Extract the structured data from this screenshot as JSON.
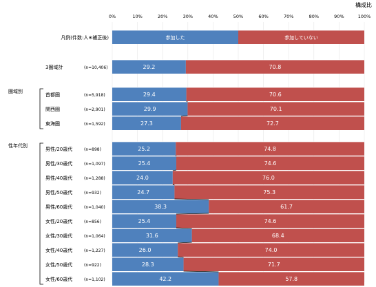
{
  "chart_data": {
    "type": "bar",
    "stacked": true,
    "orientation": "horizontal",
    "unit_label": "構成比",
    "xlim": [
      0,
      100
    ],
    "x_ticks": [
      "0%",
      "10%",
      "20%",
      "30%",
      "40%",
      "50%",
      "60%",
      "70%",
      "80%",
      "90%",
      "100%"
    ],
    "legend_row": {
      "label": "凡例(件数:人※補正後)",
      "series_labels": [
        "参加した",
        "参加していない"
      ],
      "values": [
        50,
        50
      ]
    },
    "series": [
      {
        "name": "参加した",
        "color": "#4f81bd"
      },
      {
        "name": "参加していない",
        "color": "#c0504d"
      }
    ],
    "groups": [
      {
        "label": "",
        "rows": [
          {
            "label": "3圏域計",
            "n": "(n=10,406)",
            "values": [
              29.2,
              70.8
            ]
          }
        ]
      },
      {
        "label": "圏域別",
        "rows": [
          {
            "label": "首都圏",
            "n": "(n=5,918)",
            "values": [
              29.4,
              70.6
            ]
          },
          {
            "label": "関西圏",
            "n": "(n=2,901)",
            "values": [
              29.9,
              70.1
            ]
          },
          {
            "label": "東海圏",
            "n": "(n=1,592)",
            "values": [
              27.3,
              72.7
            ]
          }
        ]
      },
      {
        "label": "性年代別",
        "rows": [
          {
            "label": "男性/20歳代",
            "n": "(n=898)",
            "values": [
              25.2,
              74.8
            ]
          },
          {
            "label": "男性/30歳代",
            "n": "(n=1,097)",
            "values": [
              25.4,
              74.6
            ]
          },
          {
            "label": "男性/40歳代",
            "n": "(n=1,288)",
            "values": [
              24.0,
              76.0
            ]
          },
          {
            "label": "男性/50歳代",
            "n": "(n=932)",
            "values": [
              24.7,
              75.3
            ]
          },
          {
            "label": "男性/60歳代",
            "n": "(n=1,040)",
            "values": [
              38.3,
              61.7
            ]
          },
          {
            "label": "女性/20歳代",
            "n": "(n=856)",
            "values": [
              25.4,
              74.6
            ]
          },
          {
            "label": "女性/30歳代",
            "n": "(n=1,064)",
            "values": [
              31.6,
              68.4
            ]
          },
          {
            "label": "女性/40歳代",
            "n": "(n=1,227)",
            "values": [
              26.0,
              74.0
            ]
          },
          {
            "label": "女性/50歳代",
            "n": "(n=922)",
            "values": [
              28.3,
              71.7
            ]
          },
          {
            "label": "女性/60歳代",
            "n": "(n=1,102)",
            "values": [
              42.2,
              57.8
            ]
          }
        ]
      }
    ]
  }
}
